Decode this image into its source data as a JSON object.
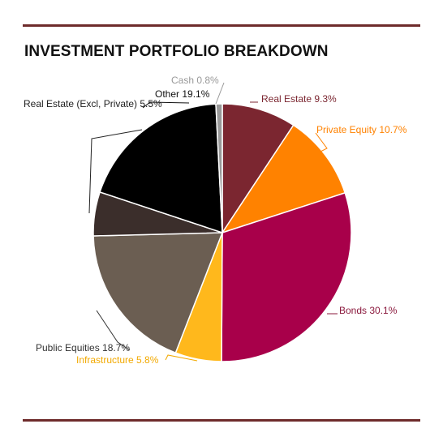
{
  "colors": {
    "rule": "#6e2b2b"
  },
  "chart_data": {
    "type": "pie",
    "title": "INVESTMENT PORTFOLIO BREAKDOWN",
    "legend": "none",
    "slices": [
      {
        "label": "Real Estate",
        "value": 9.3,
        "display": "Real Estate 9.3%",
        "color": "#7b2630",
        "label_color": "#7b2630"
      },
      {
        "label": "Private Equity",
        "value": 10.7,
        "display": "Private Equity 10.7%",
        "color": "#ff8200",
        "label_color": "#ff8200"
      },
      {
        "label": "Bonds",
        "value": 30.1,
        "display": "Bonds 30.1%",
        "color": "#a8004a",
        "label_color": "#8b1a3e"
      },
      {
        "label": "Infrastructure",
        "value": 5.8,
        "display": "Infrastructure 5.8%",
        "color": "#ffb81c",
        "label_color": "#f2a900"
      },
      {
        "label": "Public Equities",
        "value": 18.7,
        "display": "Public Equities 18.7%",
        "color": "#6b5e52",
        "label_color": "#333333"
      },
      {
        "label": "Real Estate (Excl, Private)",
        "value": 5.5,
        "display": "Real Estate (Excl, Private) 5.5%",
        "color": "#3b2e2b",
        "label_color": "#222222"
      },
      {
        "label": "Other",
        "value": 19.1,
        "display": "Other 19.1%",
        "color": "#000000",
        "label_color": "#111111"
      },
      {
        "label": "Cash",
        "value": 0.8,
        "display": "Cash 0.8%",
        "color": "#999999",
        "label_color": "#999999"
      }
    ]
  }
}
